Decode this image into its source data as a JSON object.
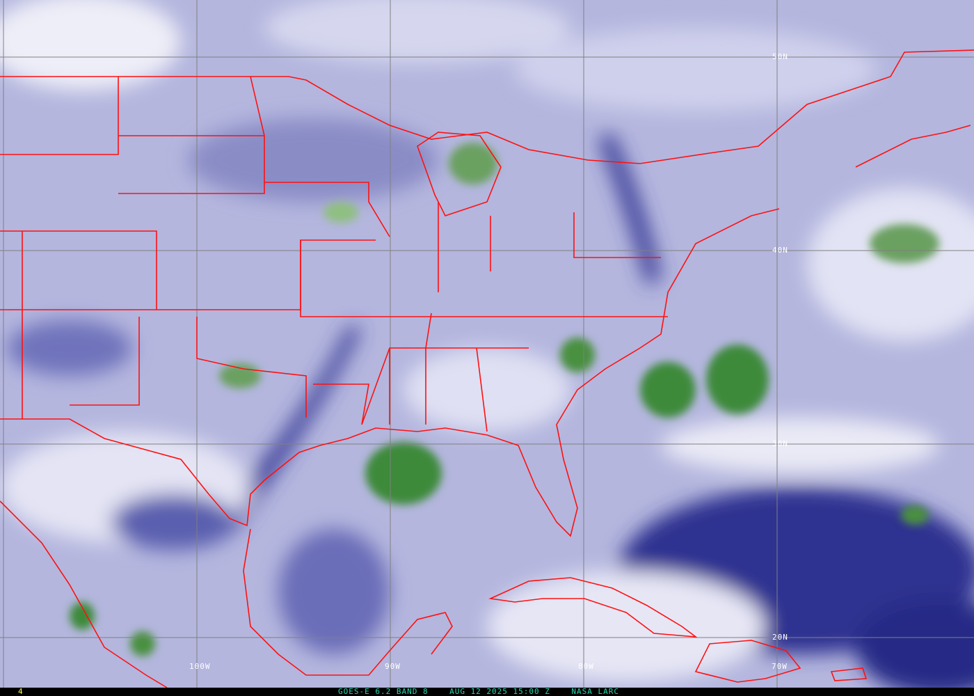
{
  "image": {
    "product": "GOES-E water vapor imagery",
    "frame_number": "4",
    "caption": "GOES-E 6.2 BAND 8    AUG 12 2025 15:00 Z    NASA LARC",
    "colors": {
      "moist_low": "#2a2e8a",
      "moist_mid": "#8c8fc8",
      "dry_high": "#e8e8f6",
      "cloud": "#3f8a3a",
      "borders": "#ff1010",
      "grid": "#808080",
      "caption": "#28d8b0",
      "frame": "#ffff40"
    }
  },
  "grid": {
    "latitude_labels": [
      "50N",
      "40N",
      "30N",
      "20N"
    ],
    "longitude_labels": [
      "100W",
      "90W",
      "80W",
      "70W"
    ]
  }
}
